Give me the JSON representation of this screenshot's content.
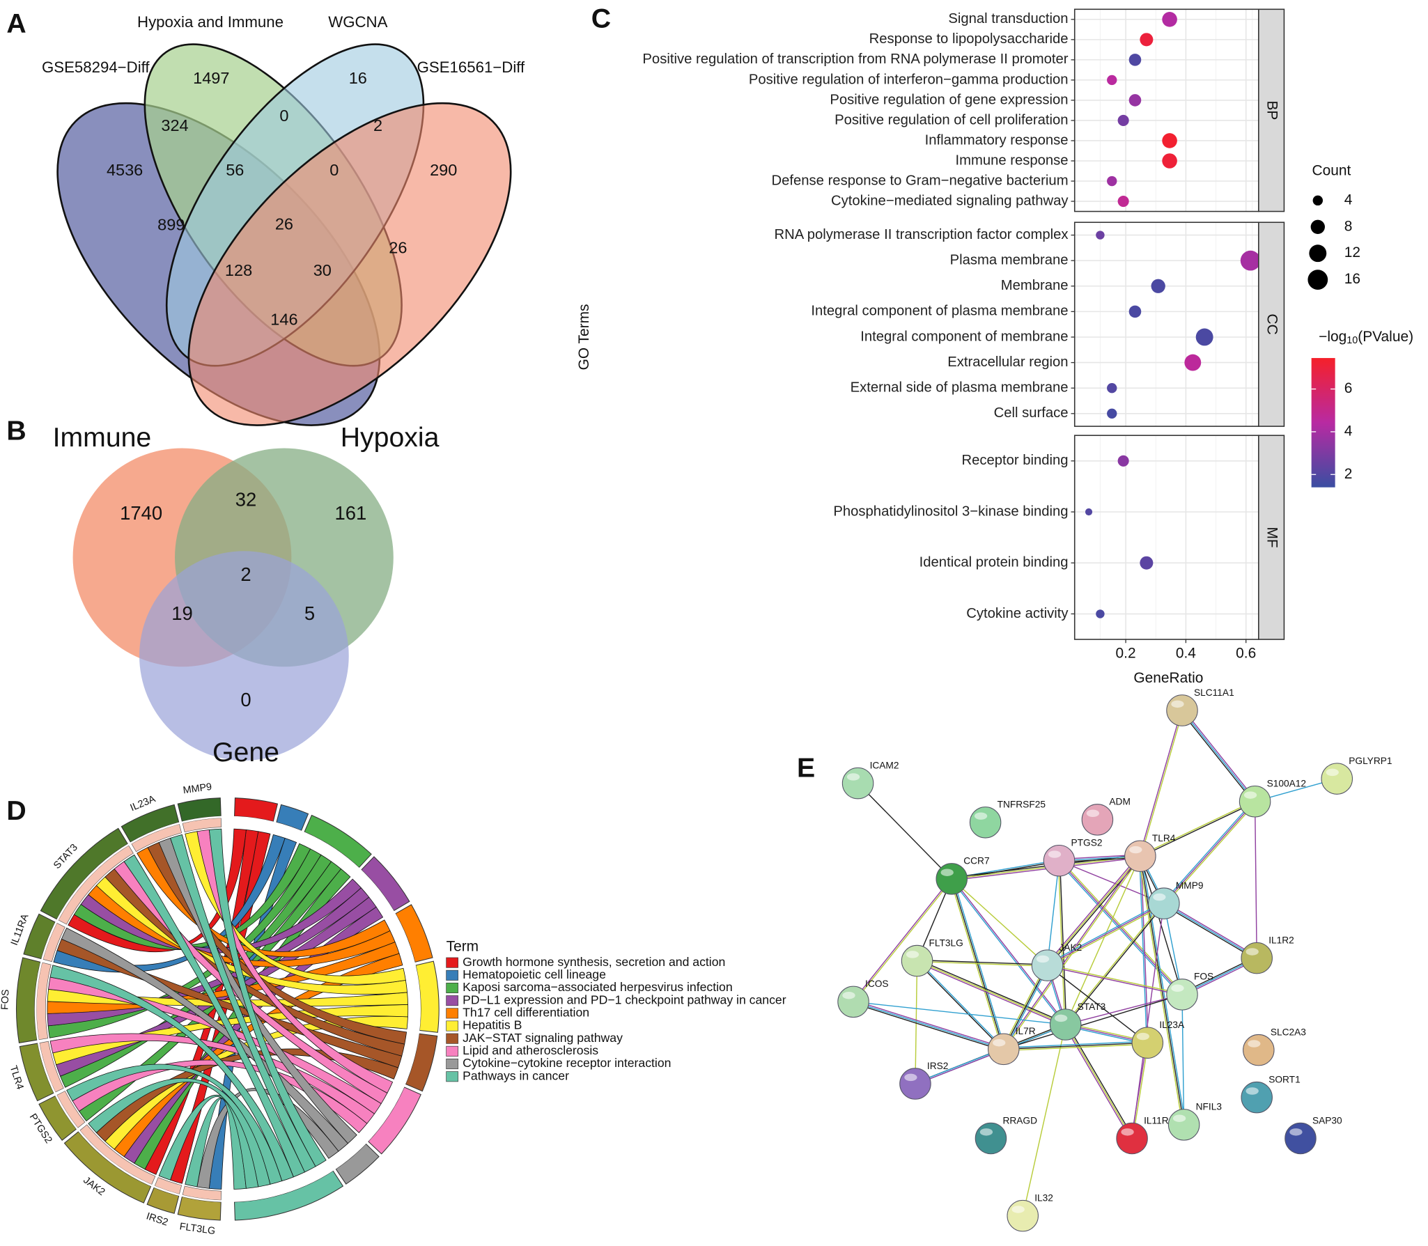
{
  "panel_labels": [
    "A",
    "B",
    "C",
    "D",
    "E"
  ],
  "venn_a": {
    "sets": [
      "GSE58294−Diff",
      "Hypoxia and Immune",
      "WGCNA",
      "GSE16561−Diff"
    ],
    "counts": [
      4536,
      1497,
      16,
      290,
      324,
      0,
      2,
      56,
      0,
      26,
      899,
      26,
      128,
      30,
      146
    ]
  },
  "venn_b": {
    "sets": [
      "Immune",
      "Hypoxia",
      "Gene"
    ],
    "counts": [
      1740,
      32,
      161,
      2,
      19,
      5,
      0
    ]
  },
  "chart_data": {
    "type": "dot",
    "x_label": "GeneRatio",
    "y_label": "GO Terms",
    "xlim": [
      0.03,
      0.642
    ],
    "xticks": [
      0.2,
      0.4,
      0.6
    ],
    "facets": [
      {
        "name": "BP",
        "categories": [
          "Signal transduction",
          "Response to lipopolysaccharide",
          "Positive regulation of transcription from RNA polymerase II promoter",
          "Positive regulation of interferon−gamma production",
          "Positive regulation of gene expression",
          "Positive regulation of cell proliferation",
          "Inflammatory response",
          "Immune response",
          "Defense response to Gram−negative bacterium",
          "Cytokine−mediated signaling pathway"
        ],
        "values": [
          0.346,
          0.269,
          0.231,
          0.154,
          0.231,
          0.192,
          0.346,
          0.346,
          0.154,
          0.192
        ],
        "counts": [
          9,
          7,
          6,
          4,
          6,
          5,
          9,
          9,
          4,
          5
        ],
        "pvalues": [
          4.3,
          7.0,
          1.9,
          4.5,
          3.6,
          2.8,
          7.3,
          7.1,
          3.8,
          4.8
        ]
      },
      {
        "name": "CC",
        "categories": [
          "RNA polymerase II transcription factor complex",
          "Plasma membrane",
          "Membrane",
          "Integral component of plasma membrane",
          "Integral component of membrane",
          "Extracellular region",
          "External side of plasma membrane",
          "Cell surface"
        ],
        "values": [
          0.115,
          0.615,
          0.308,
          0.231,
          0.462,
          0.423,
          0.154,
          0.154
        ],
        "counts": [
          3,
          16,
          8,
          6,
          12,
          11,
          4,
          4
        ],
        "pvalues": [
          2.6,
          4.0,
          1.8,
          1.8,
          1.8,
          4.6,
          2.0,
          1.7
        ]
      },
      {
        "name": "MF",
        "categories": [
          "Receptor binding",
          "Phosphatidylinositol 3−kinase binding",
          "Identical protein binding",
          "Cytokine activity"
        ],
        "values": [
          0.192,
          0.077,
          0.269,
          0.115
        ],
        "counts": [
          5,
          2,
          7,
          3
        ],
        "pvalues": [
          3.3,
          2.0,
          2.2,
          1.8
        ]
      }
    ],
    "size_legend": {
      "title": "Count",
      "values": [
        4,
        8,
        12,
        16
      ]
    },
    "color_legend": {
      "title": [
        "−log",
        "10",
        "(PValue)"
      ],
      "lim": [
        1.4,
        7.45
      ],
      "ticks": [
        2,
        4,
        6
      ],
      "colors": [
        "#3a4ea2",
        "#b82aa2",
        "#f5202a"
      ]
    }
  },
  "chord": {
    "genes": [
      "MMP9",
      "IL23A",
      "STAT3",
      "IL11RA",
      "FOS",
      "TLR4",
      "PTGS2",
      "JAK2",
      "IRS2",
      "FLT3LG"
    ],
    "legend_title": "Term",
    "terms": [
      {
        "name": "Growth hormone synthesis, secretion and action",
        "color": "#e41a1c"
      },
      {
        "name": "Hematopoietic cell lineage",
        "color": "#377eb8"
      },
      {
        "name": "Kaposi sarcoma−associated herpesvirus infection",
        "color": "#4daf4a"
      },
      {
        "name": "PD−L1 expression and PD−1 checkpoint pathway in cancer",
        "color": "#984ea3"
      },
      {
        "name": "Th17 cell differentiation",
        "color": "#ff7f00"
      },
      {
        "name": "Hepatitis B",
        "color": "#ffee33"
      },
      {
        "name": "JAK−STAT signaling pathway",
        "color": "#a65628"
      },
      {
        "name": "Lipid and atherosclerosis",
        "color": "#f781bf"
      },
      {
        "name": "Cytokine−cytokine receptor interaction",
        "color": "#999999"
      },
      {
        "name": "Pathways in cancer",
        "color": "#66c2a5"
      }
    ]
  },
  "network": {
    "nodes": [
      "SLC11A1",
      "ICAM2",
      "TNFRSF25",
      "ADM",
      "PGLYRP1",
      "S100A12",
      "CCR7",
      "PTGS2",
      "TLR4",
      "MMP9",
      "IL1R2",
      "FLT3LG",
      "JAK2",
      "FOS",
      "ICOS",
      "STAT3",
      "IL7R",
      "IL23A",
      "SLC2A3",
      "IRS2",
      "SORT1",
      "RRAGD",
      "IL11R",
      "NFIL3",
      "SAP30",
      "IL32"
    ]
  }
}
